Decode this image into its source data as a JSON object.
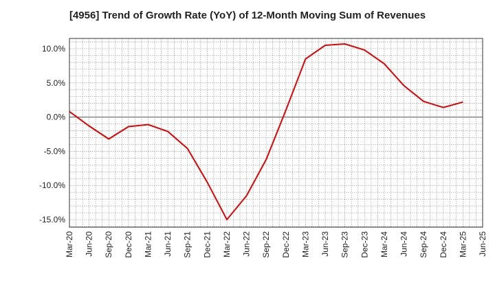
{
  "chart_data": {
    "type": "line",
    "title": "[4956]  Trend of Growth Rate (YoY) of 12-Month Moving Sum of Revenues",
    "xlabel": "",
    "ylabel": "",
    "x_ticks": [
      "Mar-20",
      "Jun-20",
      "Sep-20",
      "Dec-20",
      "Mar-21",
      "Jun-21",
      "Sep-21",
      "Dec-21",
      "Mar-22",
      "Jun-22",
      "Sep-22",
      "Dec-22",
      "Mar-23",
      "Jun-23",
      "Sep-23",
      "Dec-23",
      "Mar-24",
      "Jun-24",
      "Sep-24",
      "Dec-24",
      "Mar-25",
      "Jun-25"
    ],
    "y_ticks": [
      "10.0%",
      "5.0%",
      "0.0%",
      "-5.0%",
      "-10.0%",
      "-15.0%"
    ],
    "y_tick_values": [
      10,
      5,
      0,
      -5,
      -10,
      -15
    ],
    "ylim": [
      -16.1,
      11.5
    ],
    "grid": true,
    "zero_line": true,
    "series": [
      {
        "color": "#e60000",
        "x": [
          "Mar-20",
          "Jun-20",
          "Sep-20",
          "Dec-20",
          "Mar-21",
          "Jun-21",
          "Sep-21",
          "Dec-21",
          "Mar-22",
          "Jun-22",
          "Sep-22",
          "Dec-22",
          "Mar-23",
          "Jun-23",
          "Sep-23",
          "Dec-23",
          "Mar-24",
          "Jun-24",
          "Sep-24",
          "Dec-24",
          "Mar-25"
        ],
        "values": [
          0.8,
          -1.3,
          -3.2,
          -1.4,
          -1.1,
          -2.1,
          -4.6,
          -9.5,
          -15.0,
          -11.5,
          -6.2,
          1.0,
          8.5,
          10.5,
          10.7,
          9.8,
          7.8,
          4.6,
          2.3,
          1.4,
          2.2
        ]
      }
    ]
  }
}
